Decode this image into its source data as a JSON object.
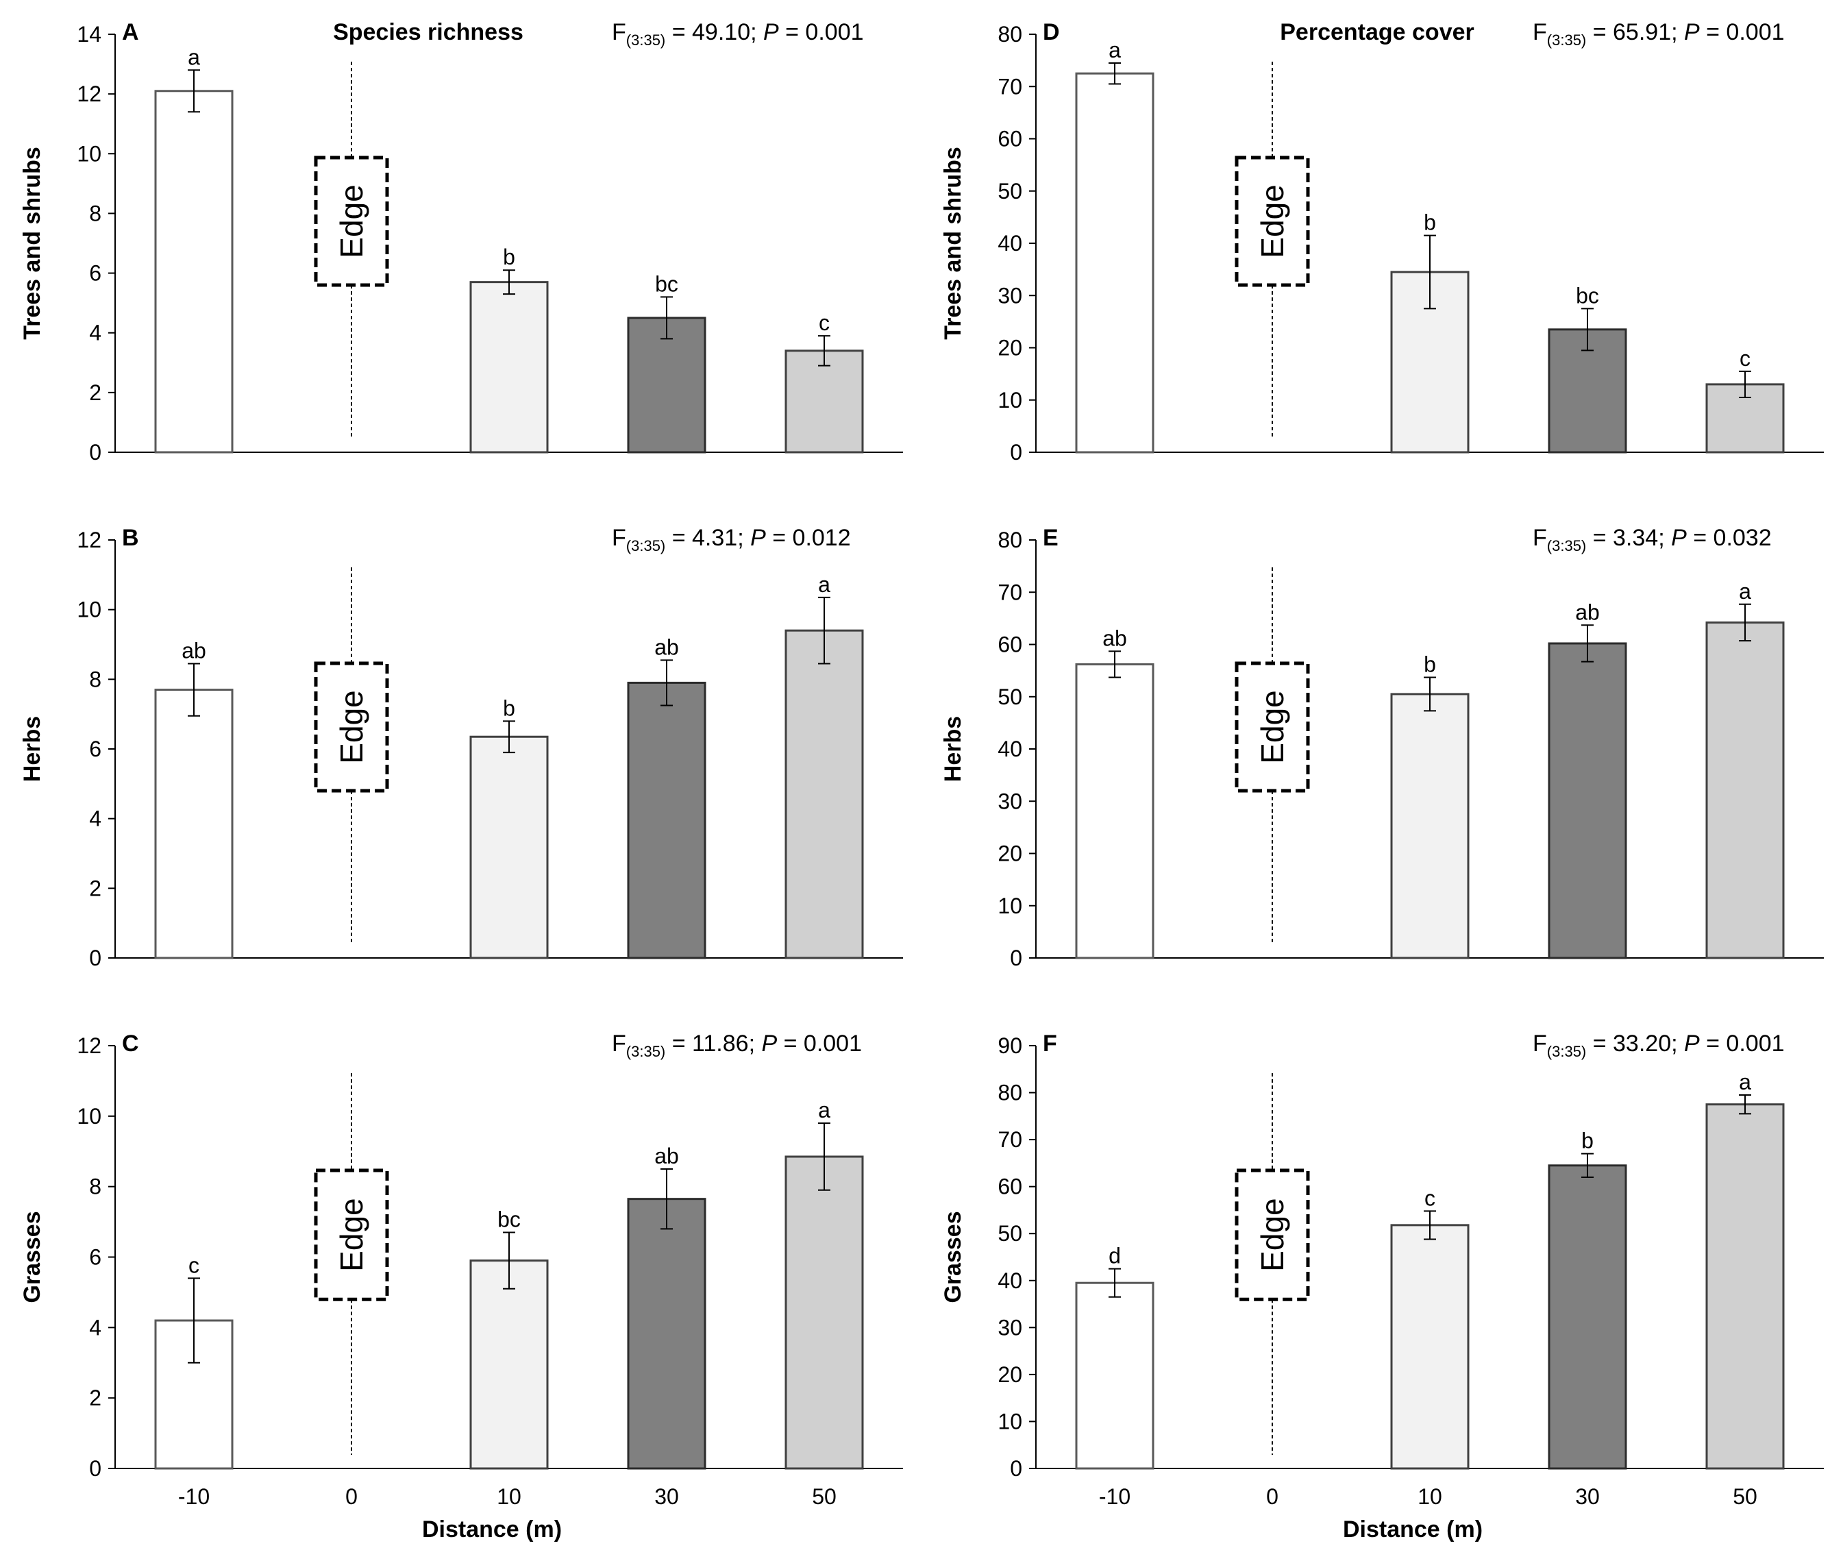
{
  "figure": {
    "column_titles": [
      "Species richness",
      "Percentage cover"
    ],
    "xlabel": "Distance (m)"
  },
  "chart_data": [
    {
      "type": "bar",
      "panel": "A",
      "ylabel": "Trees and shrubs",
      "categories": [
        "-10",
        "0",
        "10",
        "30",
        "50"
      ],
      "values": [
        12.1,
        null,
        5.7,
        4.5,
        3.4
      ],
      "errors": [
        0.7,
        null,
        0.4,
        0.7,
        0.5
      ],
      "letters": [
        "a",
        "",
        "b",
        "bc",
        "c"
      ],
      "colors": [
        "#ffffff",
        null,
        "#f2f2f2",
        "#808080",
        "#d0d0d0"
      ],
      "ylim": [
        0,
        14
      ],
      "ystep": 2,
      "stat": {
        "F_prefix": "F",
        "df": "(3:35)",
        "F_value": " = 49.10; ",
        "P_label": "P",
        "P_value": " = 0.001"
      },
      "edge_label": "Edge",
      "title": "Species richness"
    },
    {
      "type": "bar",
      "panel": "B",
      "ylabel": "Herbs",
      "categories": [
        "-10",
        "0",
        "10",
        "30",
        "50"
      ],
      "values": [
        7.7,
        null,
        6.35,
        7.9,
        9.4
      ],
      "errors": [
        0.75,
        null,
        0.45,
        0.65,
        0.95
      ],
      "letters": [
        "ab",
        "",
        "b",
        "ab",
        "a"
      ],
      "colors": [
        "#ffffff",
        null,
        "#f2f2f2",
        "#808080",
        "#d0d0d0"
      ],
      "ylim": [
        0,
        12
      ],
      "ystep": 2,
      "stat": {
        "F_prefix": "F",
        "df": "(3:35)",
        "F_value": " = 4.31; ",
        "P_label": "P",
        "P_value": " = 0.012"
      },
      "edge_label": "Edge",
      "title": ""
    },
    {
      "type": "bar",
      "panel": "C",
      "ylabel": "Grasses",
      "categories": [
        "-10",
        "0",
        "10",
        "30",
        "50"
      ],
      "values": [
        4.2,
        null,
        5.9,
        7.65,
        8.85
      ],
      "errors": [
        1.2,
        null,
        0.8,
        0.85,
        0.95
      ],
      "letters": [
        "c",
        "",
        "bc",
        "ab",
        "a"
      ],
      "colors": [
        "#ffffff",
        null,
        "#f2f2f2",
        "#808080",
        "#d0d0d0"
      ],
      "ylim": [
        0,
        12
      ],
      "ystep": 2,
      "stat": {
        "F_prefix": "F",
        "df": "(3:35)",
        "F_value": " = 11.86; ",
        "P_label": "P",
        "P_value": " = 0.001"
      },
      "edge_label": "Edge",
      "title": ""
    },
    {
      "type": "bar",
      "panel": "D",
      "ylabel": "Trees and shrubs",
      "categories": [
        "-10",
        "0",
        "10",
        "30",
        "50"
      ],
      "values": [
        72.5,
        null,
        34.5,
        23.5,
        13
      ],
      "errors": [
        2,
        null,
        7,
        4,
        2.5
      ],
      "letters": [
        "a",
        "",
        "b",
        "bc",
        "c"
      ],
      "colors": [
        "#ffffff",
        null,
        "#f2f2f2",
        "#808080",
        "#d0d0d0"
      ],
      "ylim": [
        0,
        80
      ],
      "ystep": 10,
      "stat": {
        "F_prefix": "F",
        "df": "(3:35)",
        "F_value": " = 65.91; ",
        "P_label": "P",
        "P_value": " = 0.001"
      },
      "edge_label": "Edge",
      "title": "Percentage cover"
    },
    {
      "type": "bar",
      "panel": "E",
      "ylabel": "Herbs",
      "categories": [
        "-10",
        "0",
        "10",
        "30",
        "50"
      ],
      "values": [
        56.2,
        null,
        50.5,
        60.2,
        64.2
      ],
      "errors": [
        2.5,
        null,
        3.2,
        3.5,
        3.5
      ],
      "letters": [
        "ab",
        "",
        "b",
        "ab",
        "a"
      ],
      "colors": [
        "#ffffff",
        null,
        "#f2f2f2",
        "#808080",
        "#d0d0d0"
      ],
      "ylim": [
        0,
        80
      ],
      "ystep": 10,
      "stat": {
        "F_prefix": "F",
        "df": "(3:35)",
        "F_value": " = 3.34; ",
        "P_label": "P",
        "P_value": " = 0.032"
      },
      "edge_label": "Edge",
      "title": ""
    },
    {
      "type": "bar",
      "panel": "F",
      "ylabel": "Grasses",
      "categories": [
        "-10",
        "0",
        "10",
        "30",
        "50"
      ],
      "values": [
        39.5,
        null,
        51.8,
        64.5,
        77.5
      ],
      "errors": [
        3,
        null,
        3,
        2.5,
        2
      ],
      "letters": [
        "d",
        "",
        "c",
        "b",
        "a"
      ],
      "colors": [
        "#ffffff",
        null,
        "#f2f2f2",
        "#808080",
        "#d0d0d0"
      ],
      "ylim": [
        0,
        90
      ],
      "ystep": 10,
      "stat": {
        "F_prefix": "F",
        "df": "(3:35)",
        "F_value": " = 33.20; ",
        "P_label": "P",
        "P_value": " = 0.001"
      },
      "edge_label": "Edge",
      "title": ""
    }
  ]
}
